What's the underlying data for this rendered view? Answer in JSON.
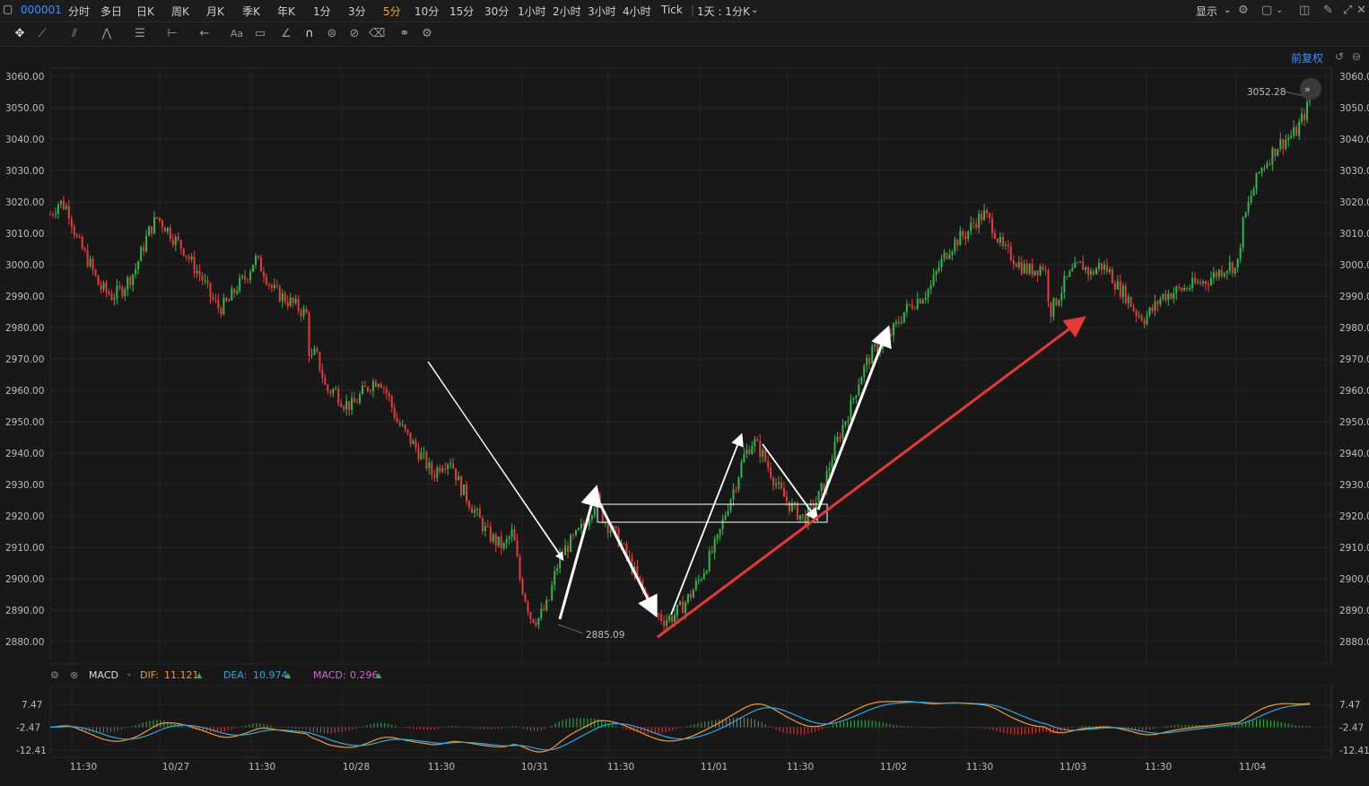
{
  "toolbar": {
    "symbol": "000001",
    "periods": [
      "分时",
      "多日",
      "日K",
      "周K",
      "月K",
      "季K",
      "年K",
      "1分",
      "3分",
      "5分",
      "10分",
      "15分",
      "30分",
      "1小时",
      "2小时",
      "3小时",
      "4小时",
      "Tick"
    ],
    "active_period": "5分",
    "range_select": "1天 : 1分K",
    "display_label": "显示"
  },
  "restoration_label": "前复权",
  "chart_data": [
    {
      "type": "candlestick",
      "y_ticks": [
        3060,
        3050,
        3040,
        3030,
        3020,
        3010,
        3000,
        2990,
        2980,
        2970,
        2960,
        2950,
        2940,
        2930,
        2920,
        2910,
        2900,
        2890,
        2880
      ],
      "y_tick_labels": [
        "3060.00",
        "3050.00",
        "3040.00",
        "3030.00",
        "3020.00",
        "3010.00",
        "3000.00",
        "2990.00",
        "2980.00",
        "2970.00",
        "2960.00",
        "2950.00",
        "2940.00",
        "2930.00",
        "2920.00",
        "2910.00",
        "2900.00",
        "2890.00",
        "2880.00"
      ],
      "ylim": [
        2876,
        3064
      ],
      "x_tick_labels": [
        "11:30",
        "10/27",
        "11:30",
        "10/28",
        "11:30",
        "10/31",
        "11:30",
        "11/01",
        "11:30",
        "11/02",
        "11:30",
        "11/03",
        "11:30",
        "11/04"
      ],
      "max_label": "3052.28",
      "min_label": "2885.09",
      "price_path": [
        [
          0,
          3016
        ],
        [
          10,
          3020
        ],
        [
          20,
          3018
        ],
        [
          30,
          3008
        ],
        [
          45,
          3000
        ],
        [
          55,
          2993
        ],
        [
          70,
          2990
        ],
        [
          80,
          2992
        ],
        [
          90,
          2996
        ],
        [
          95,
          2998
        ],
        [
          100,
          3002
        ],
        [
          110,
          3010
        ],
        [
          120,
          3015
        ],
        [
          130,
          3012
        ],
        [
          140,
          3008
        ],
        [
          150,
          3005
        ],
        [
          160,
          3000
        ],
        [
          170,
          2996
        ],
        [
          180,
          2990
        ],
        [
          190,
          2986
        ],
        [
          200,
          2988
        ],
        [
          210,
          2993
        ],
        [
          220,
          2996
        ],
        [
          230,
          3002
        ],
        [
          240,
          2998
        ],
        [
          250,
          2992
        ],
        [
          260,
          2990
        ],
        [
          270,
          2988
        ],
        [
          280,
          2986
        ],
        [
          288,
          2984
        ],
        [
          292,
          2969
        ],
        [
          298,
          2972
        ],
        [
          305,
          2966
        ],
        [
          310,
          2960
        ],
        [
          320,
          2960
        ],
        [
          330,
          2956
        ],
        [
          340,
          2955
        ],
        [
          350,
          2959
        ],
        [
          360,
          2962
        ],
        [
          370,
          2964
        ],
        [
          380,
          2958
        ],
        [
          390,
          2950
        ],
        [
          400,
          2946
        ],
        [
          410,
          2942
        ],
        [
          420,
          2938
        ],
        [
          430,
          2933
        ],
        [
          440,
          2937
        ],
        [
          450,
          2938
        ],
        [
          460,
          2930
        ],
        [
          470,
          2925
        ],
        [
          480,
          2920
        ],
        [
          490,
          2915
        ],
        [
          500,
          2912
        ],
        [
          510,
          2910
        ],
        [
          520,
          2915
        ],
        [
          528,
          2900
        ],
        [
          535,
          2893
        ],
        [
          540,
          2888
        ],
        [
          548,
          2887
        ],
        [
          555,
          2890
        ],
        [
          560,
          2892
        ],
        [
          566,
          2900
        ],
        [
          572,
          2906
        ],
        [
          580,
          2910
        ],
        [
          590,
          2913
        ],
        [
          600,
          2917
        ],
        [
          608,
          2922
        ],
        [
          614,
          2926
        ],
        [
          620,
          2920
        ],
        [
          630,
          2916
        ],
        [
          640,
          2912
        ],
        [
          650,
          2906
        ],
        [
          660,
          2900
        ],
        [
          670,
          2894
        ],
        [
          680,
          2889
        ],
        [
          690,
          2887
        ],
        [
          700,
          2888
        ],
        [
          710,
          2891
        ],
        [
          720,
          2895
        ],
        [
          730,
          2900
        ],
        [
          740,
          2906
        ],
        [
          750,
          2912
        ],
        [
          760,
          2922
        ],
        [
          770,
          2930
        ],
        [
          780,
          2939
        ],
        [
          790,
          2944
        ],
        [
          800,
          2940
        ],
        [
          810,
          2934
        ],
        [
          820,
          2928
        ],
        [
          830,
          2924
        ],
        [
          840,
          2921
        ],
        [
          848,
          2919
        ],
        [
          855,
          2922
        ],
        [
          862,
          2925
        ],
        [
          870,
          2930
        ],
        [
          880,
          2940
        ],
        [
          890,
          2948
        ],
        [
          900,
          2955
        ],
        [
          910,
          2964
        ],
        [
          920,
          2970
        ],
        [
          930,
          2974
        ],
        [
          940,
          2976
        ],
        [
          950,
          2980
        ],
        [
          960,
          2985
        ],
        [
          970,
          2988
        ],
        [
          980,
          2990
        ],
        [
          990,
          2993
        ],
        [
          1000,
          3000
        ],
        [
          1010,
          3005
        ],
        [
          1020,
          3008
        ],
        [
          1030,
          3010
        ],
        [
          1040,
          3014
        ],
        [
          1050,
          3016
        ],
        [
          1060,
          3012
        ],
        [
          1070,
          3005
        ],
        [
          1080,
          3003
        ],
        [
          1090,
          3000
        ],
        [
          1100,
          2998
        ],
        [
          1110,
          2999
        ],
        [
          1118,
          3000
        ],
        [
          1124,
          2985
        ],
        [
          1130,
          2988
        ],
        [
          1140,
          2994
        ],
        [
          1150,
          2998
        ],
        [
          1160,
          3000
        ],
        [
          1170,
          2997
        ],
        [
          1180,
          3000
        ],
        [
          1190,
          2998
        ],
        [
          1200,
          2993
        ],
        [
          1210,
          2990
        ],
        [
          1220,
          2985
        ],
        [
          1230,
          2983
        ],
        [
          1240,
          2986
        ],
        [
          1250,
          2990
        ],
        [
          1260,
          2991
        ],
        [
          1270,
          2992
        ],
        [
          1280,
          2993
        ],
        [
          1290,
          2994
        ],
        [
          1300,
          2995
        ],
        [
          1310,
          2997
        ],
        [
          1320,
          2999
        ],
        [
          1328,
          3000
        ],
        [
          1334,
          2998
        ],
        [
          1340,
          3012
        ],
        [
          1350,
          3022
        ],
        [
          1360,
          3030
        ],
        [
          1370,
          3034
        ],
        [
          1380,
          3038
        ],
        [
          1390,
          3040
        ],
        [
          1400,
          3042
        ],
        [
          1405,
          3045
        ],
        [
          1410,
          3048
        ],
        [
          1416,
          3052
        ]
      ]
    },
    {
      "type": "macd",
      "indicator": "MACD",
      "dif_label": "DIF:",
      "dif_value": "11.121",
      "dea_label": "DEA:",
      "dea_value": "10.974",
      "macd_label": "MACD:",
      "macd_value": "0.296",
      "y_tick_labels": [
        "7.47",
        "-2.47",
        "-12.41"
      ],
      "y_ticks": [
        7.47,
        -2.47,
        -12.41
      ]
    }
  ],
  "colors": {
    "up": "#2eb84c",
    "down": "#e83a3a",
    "dif": "#f59a23",
    "dea": "#2aa7e0",
    "macd": "#d066d0",
    "accent": "#3d8eff",
    "active_period": "#f5a623"
  }
}
